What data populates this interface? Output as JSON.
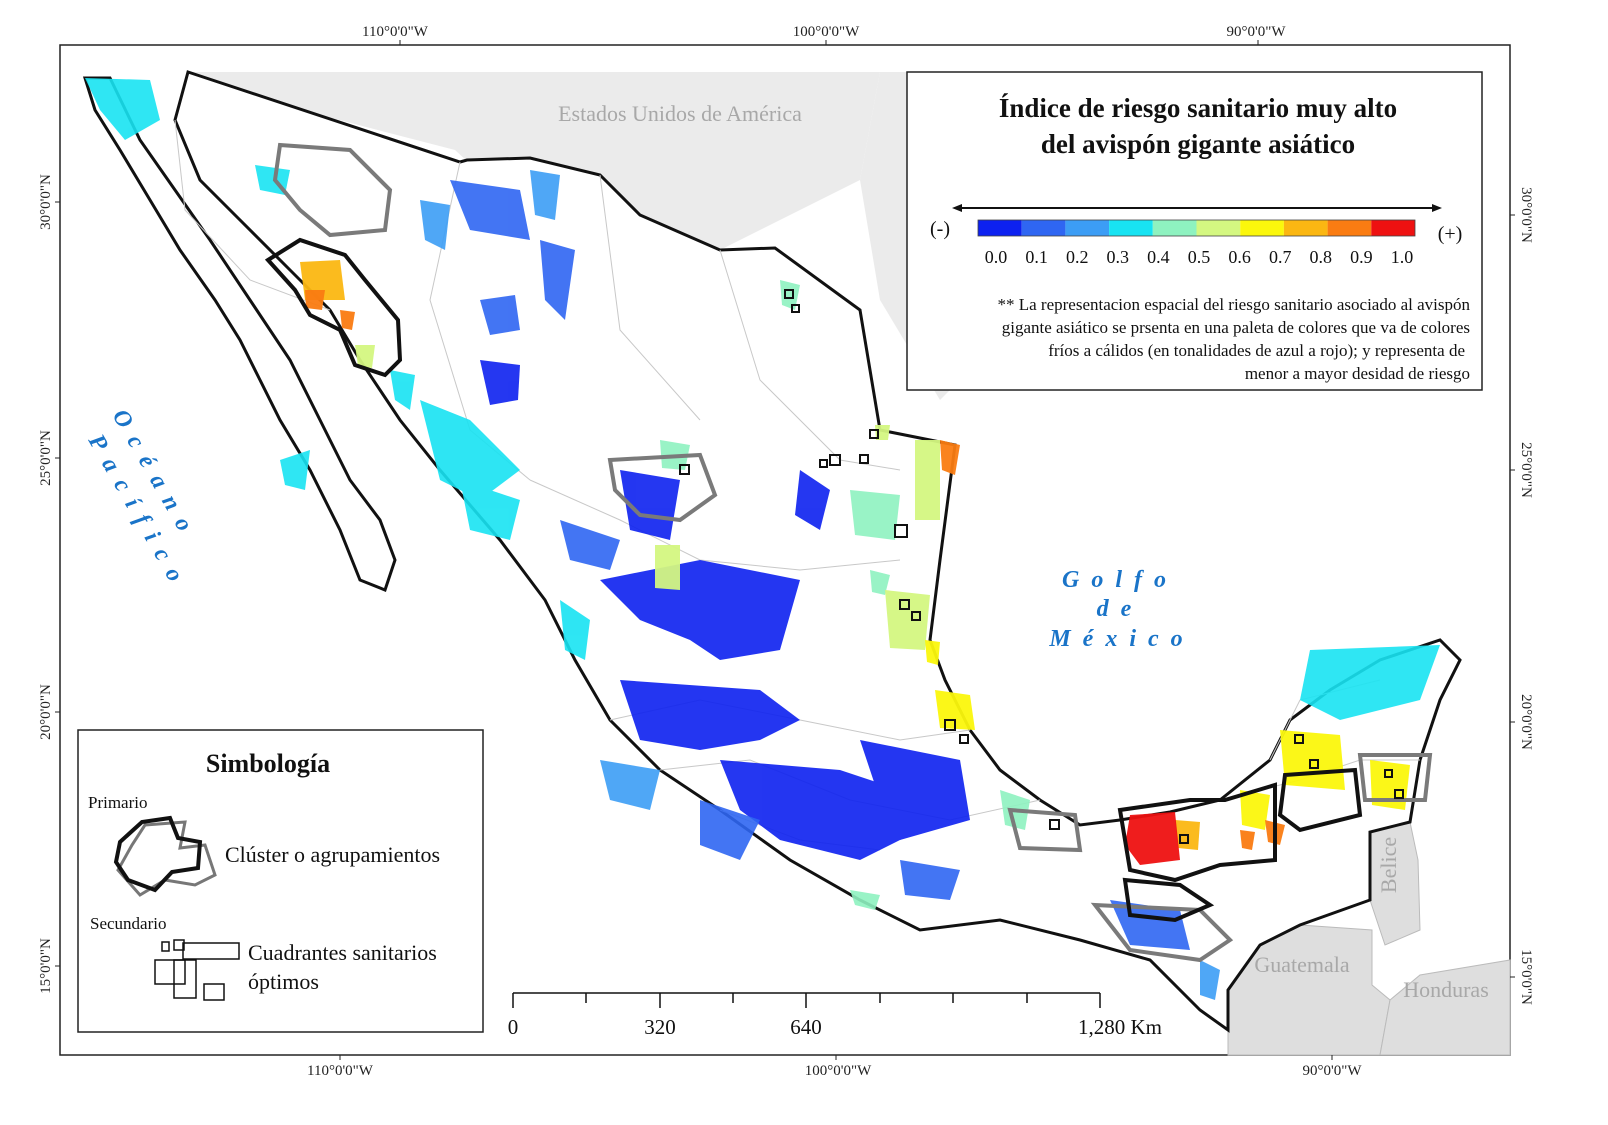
{
  "graticule": {
    "top": [
      "110°0'0\"W",
      "100°0'0\"W",
      "90°0'0\"W"
    ],
    "bottom": [
      "110°0'0\"W",
      "100°0'0\"W",
      "90°0'0\"W"
    ],
    "left": [
      "30°0'0\"N",
      "25°0'0\"N",
      "20°0'0\"N",
      "15°0'0\"N"
    ],
    "right": [
      "30°0'0\"N",
      "25°0'0\"N",
      "20°0'0\"N",
      "15°0'0\"N"
    ]
  },
  "labels": {
    "usa": "Estados Unidos de América",
    "pacific_line1": "Océano",
    "pacific_line2": "Pacífico",
    "gulf_line1": "Golfo",
    "gulf_line2": "de",
    "gulf_line3": "México",
    "guatemala": "Guatemala",
    "belice": "Belice",
    "honduras": "Honduras"
  },
  "title_box": {
    "title_line1": "Índice de riesgo sanitario muy alto",
    "title_line2": "del avispón gigante asiático",
    "minus_sign": "(-)",
    "plus_sign": "(+)",
    "note_lines": [
      "** La representacion espacial del riesgo sanitario asociado al avispón",
      "gigante asiático se prsenta en una paleta de colores que va de colores",
      "fríos a cálidos (en tonalidades de azul a rojo); y representa de",
      "menor a mayor desidad de riesgo"
    ]
  },
  "color_scale": {
    "ticks": [
      "0.0",
      "0.1",
      "0.2",
      "0.3",
      "0.4",
      "0.5",
      "0.6",
      "0.7",
      "0.8",
      "0.9",
      "1.0"
    ],
    "colors": [
      "#0d21f0",
      "#2f66f2",
      "#3c9df5",
      "#18e3f2",
      "#8ef2c0",
      "#d4f781",
      "#fbf70c",
      "#fbb712",
      "#fa7c12",
      "#ee1111"
    ]
  },
  "legend": {
    "title": "Simbología",
    "primary_label": "Primario",
    "secondary_label": "Secundario",
    "cluster_label": "Clúster o agrupamientos",
    "quadrant_line1": "Cuadrantes sanitarios",
    "quadrant_line2": "óptimos"
  },
  "scale_bar": {
    "labels": [
      "0",
      "320",
      "640",
      "1,280 Km"
    ]
  },
  "colors": {
    "land": "#ffffff",
    "neighbor": "#e2e2e2",
    "sea": "#ffffff",
    "accent_blue": "#1a74c8"
  }
}
